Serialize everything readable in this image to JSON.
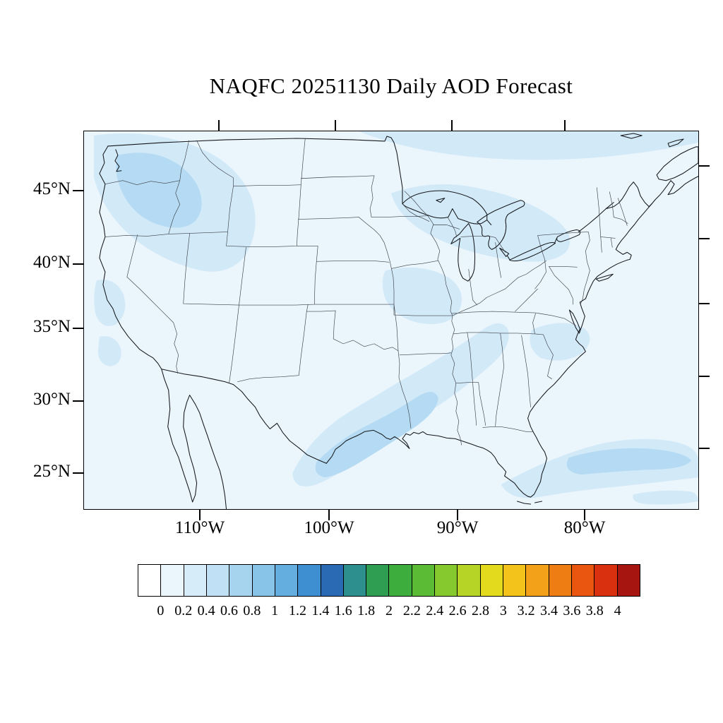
{
  "title": "NAQFC 20251130 Daily AOD Forecast",
  "axes": {
    "lat_labels": [
      "45°N",
      "40°N",
      "35°N",
      "30°N",
      "25°N"
    ],
    "lon_labels": [
      "110°W",
      "100°W",
      "90°W",
      "80°W"
    ]
  },
  "colorbar": {
    "tick_labels": [
      "0",
      "0.2",
      "0.4",
      "0.6",
      "0.8",
      "1",
      "1.2",
      "1.4",
      "1.6",
      "1.8",
      "2",
      "2.2",
      "2.4",
      "2.6",
      "2.8",
      "3",
      "3.2",
      "3.4",
      "3.6",
      "3.8",
      "4"
    ],
    "colors": [
      "#ffffff",
      "#eaf5fc",
      "#d6ecf9",
      "#c0e1f5",
      "#a6d4ef",
      "#88c4e8",
      "#63aede",
      "#3d8fd1",
      "#2a6ab5",
      "#2e8f8f",
      "#2f9e53",
      "#3dad3d",
      "#5cbb34",
      "#86c92e",
      "#b5d426",
      "#e3da1e",
      "#f3c31c",
      "#f3a118",
      "#ee7d13",
      "#ea5510",
      "#d93110",
      "#a6150f"
    ]
  },
  "chart_data": {
    "type": "heatmap",
    "title": "NAQFC 20251130 Daily AOD Forecast",
    "variable": "Aerosol Optical Depth (AOD), daily forecast",
    "model": "NAQFC",
    "forecast_date": "20251130",
    "region": "Continental United States with parts of Canada, Mexico and adjacent oceans",
    "projection": "conic map projection, lat/lon ticks on all four sides",
    "x_axis": {
      "label_type": "longitude",
      "ticks": [
        "110°W",
        "100°W",
        "90°W",
        "80°W"
      ]
    },
    "y_axis": {
      "label_type": "latitude",
      "ticks": [
        "45°N",
        "40°N",
        "35°N",
        "30°N",
        "25°N"
      ]
    },
    "colorbar": {
      "orientation": "horizontal",
      "range": [
        0,
        4
      ],
      "interval": 0.2,
      "tick_values": [
        0,
        0.2,
        0.4,
        0.6,
        0.8,
        1,
        1.2,
        1.4,
        1.6,
        1.8,
        2,
        2.2,
        2.4,
        2.6,
        2.8,
        3,
        3.2,
        3.4,
        3.6,
        3.8,
        4
      ],
      "palette": "white to light blues, blue, teal, greens, yellow, orange, red, dark red"
    },
    "field_summary": [
      {
        "area": "Pacific Northwest (Washington, E Oregon, Idaho)",
        "aod": "0.2-0.5"
      },
      {
        "area": "Northern California coast (small patches)",
        "aod": "0.2-0.4"
      },
      {
        "area": "Gulf Coast band from S Texas across Louisiana/Mississippi toward Tennessee",
        "aod": "0.2-0.5"
      },
      {
        "area": "SE of Florida / western Atlantic and Florida Straits",
        "aod": "0.2-0.5"
      },
      {
        "area": "Great Lakes and southern Ontario",
        "aod": "0.2-0.4"
      },
      {
        "area": "Mid-Mississippi valley (Missouri/Illinois)",
        "aod": "0.2-0.3"
      },
      {
        "area": "Southern Canada along top of domain",
        "aod": "0.2-0.3"
      },
      {
        "area": "Virginia/Carolina piedmont patch",
        "aod": "0.2-0.3"
      },
      {
        "area": "Remainder of domain",
        "aod": "0-0.2"
      }
    ]
  }
}
